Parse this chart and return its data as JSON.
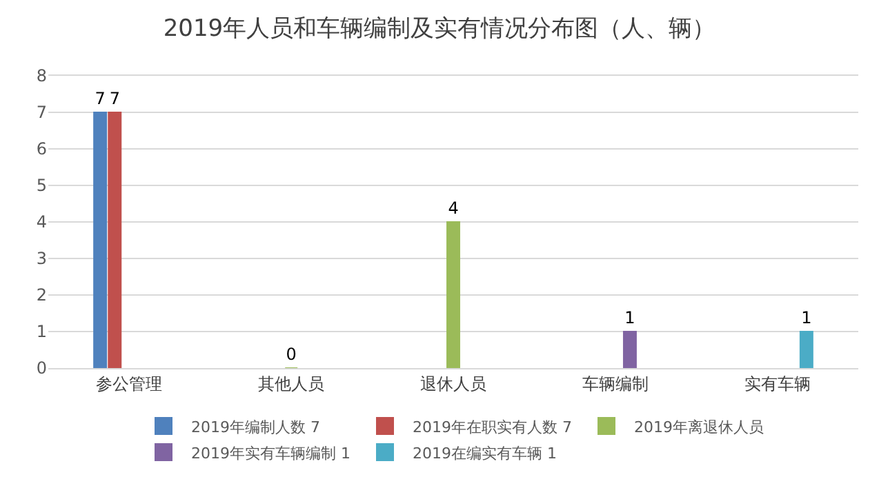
{
  "chart_data": {
    "type": "bar",
    "title": "2019年人员和车辆编制及实有情况分布图（人、辆）",
    "categories": [
      "参公管理",
      "其他人员",
      "退休人员",
      "车辆编制",
      "实有车辆"
    ],
    "series": [
      {
        "name": "2019年编制人数 7",
        "color": "#4f81bd",
        "values": [
          7,
          null,
          null,
          null,
          null
        ],
        "value_labels": [
          "7",
          null,
          null,
          null,
          null
        ]
      },
      {
        "name": "2019年在职实有人数 7",
        "color": "#c0504d",
        "values": [
          7,
          null,
          null,
          null,
          null
        ],
        "value_labels": [
          "7",
          null,
          null,
          null,
          null
        ]
      },
      {
        "name": "2019年离退休人员",
        "color": "#9bbb59",
        "values": [
          null,
          0,
          4,
          null,
          null
        ],
        "value_labels": [
          null,
          "0",
          "4",
          null,
          null
        ]
      },
      {
        "name": "2019年实有车辆编制 1",
        "color": "#8064a2",
        "values": [
          null,
          null,
          null,
          1,
          null
        ],
        "value_labels": [
          null,
          null,
          null,
          "1",
          null
        ]
      },
      {
        "name": "2019在编实有车辆 1",
        "color": "#4bacc6",
        "values": [
          null,
          null,
          null,
          null,
          1
        ],
        "value_labels": [
          null,
          null,
          null,
          null,
          "1"
        ]
      }
    ],
    "ylim": [
      0,
      8
    ],
    "yticks": [
      0,
      1,
      2,
      3,
      4,
      5,
      6,
      7,
      8
    ],
    "grid": "y",
    "legend": "bottom"
  }
}
